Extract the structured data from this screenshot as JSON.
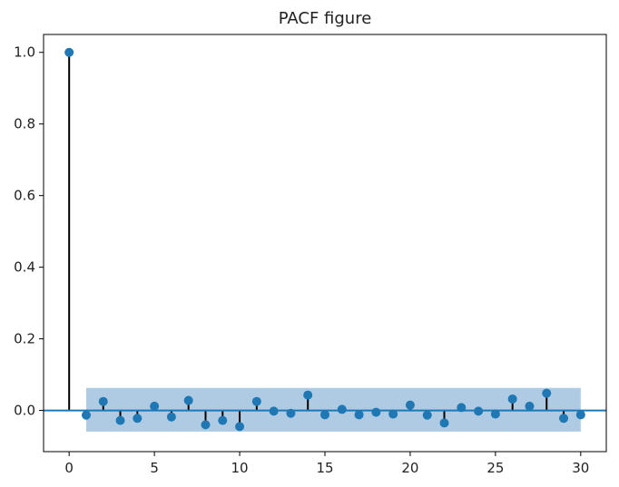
{
  "chart_data": {
    "type": "scatter",
    "title": "PACF figure",
    "xlabel": "",
    "ylabel": "",
    "xlim": [
      -1.5,
      31.5
    ],
    "ylim": [
      -0.115,
      1.05
    ],
    "x_ticks": [
      0,
      5,
      10,
      15,
      20,
      25,
      30
    ],
    "y_ticks": [
      0.0,
      0.2,
      0.4,
      0.6,
      0.8,
      1.0
    ],
    "x_tick_labels": [
      "0",
      "5",
      "10",
      "15",
      "20",
      "25",
      "30"
    ],
    "y_tick_labels": [
      "0.0",
      "0.2",
      "0.4",
      "0.6",
      "0.8",
      "1.0"
    ],
    "grid": false,
    "lags": [
      0,
      1,
      2,
      3,
      4,
      5,
      6,
      7,
      8,
      9,
      10,
      11,
      12,
      13,
      14,
      15,
      16,
      17,
      18,
      19,
      20,
      21,
      22,
      23,
      24,
      25,
      26,
      27,
      28,
      29,
      30
    ],
    "values": [
      1.0,
      -0.013,
      0.025,
      -0.028,
      -0.022,
      0.012,
      -0.018,
      0.028,
      -0.04,
      -0.028,
      -0.045,
      0.025,
      -0.002,
      -0.008,
      0.043,
      -0.012,
      0.003,
      -0.012,
      -0.005,
      -0.01,
      0.015,
      -0.013,
      -0.035,
      0.008,
      -0.002,
      -0.01,
      0.032,
      0.012,
      0.048,
      -0.022,
      -0.012
    ],
    "confidence_band": {
      "x_range": [
        1,
        30
      ],
      "upper": 0.063,
      "lower": -0.059
    },
    "colors": {
      "marker": "#1f77b4",
      "stem": "#000000",
      "band": "#aecbe3",
      "baseline": "#1f77b4"
    }
  }
}
